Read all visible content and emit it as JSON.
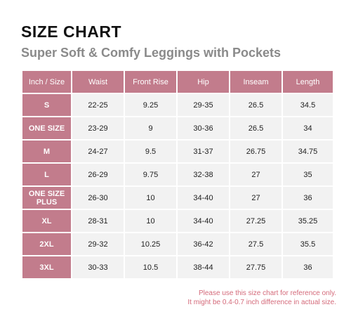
{
  "title": "SIZE CHART",
  "subtitle": "Super Soft & Comfy Leggings with Pockets",
  "colors": {
    "accent": "#c27c8c",
    "cell_bg": "#f2f2f2",
    "note": "#d46a7a"
  },
  "table": {
    "headers": [
      "Inch / Size",
      "Waist",
      "Front Rise",
      "Hip",
      "Inseam",
      "Length"
    ],
    "rows": [
      {
        "size": "S",
        "values": [
          "22-25",
          "9.25",
          "29-35",
          "26.5",
          "34.5"
        ]
      },
      {
        "size": "ONE SIZE",
        "values": [
          "23-29",
          "9",
          "30-36",
          "26.5",
          "34"
        ]
      },
      {
        "size": "M",
        "values": [
          "24-27",
          "9.5",
          "31-37",
          "26.75",
          "34.75"
        ]
      },
      {
        "size": "L",
        "values": [
          "26-29",
          "9.75",
          "32-38",
          "27",
          "35"
        ]
      },
      {
        "size_line1": "ONE SIZE",
        "size_line2": "PLUS",
        "values": [
          "26-30",
          "10",
          "34-40",
          "27",
          "36"
        ]
      },
      {
        "size": "XL",
        "values": [
          "28-31",
          "10",
          "34-40",
          "27.25",
          "35.25"
        ]
      },
      {
        "size": "2XL",
        "values": [
          "29-32",
          "10.25",
          "36-42",
          "27.5",
          "35.5"
        ]
      },
      {
        "size": "3XL",
        "values": [
          "30-33",
          "10.5",
          "38-44",
          "27.75",
          "36"
        ]
      }
    ]
  },
  "note": {
    "line1": "Please use this size chart for reference only.",
    "line2": "It might be 0.4-0.7 inch difference in actual size."
  }
}
